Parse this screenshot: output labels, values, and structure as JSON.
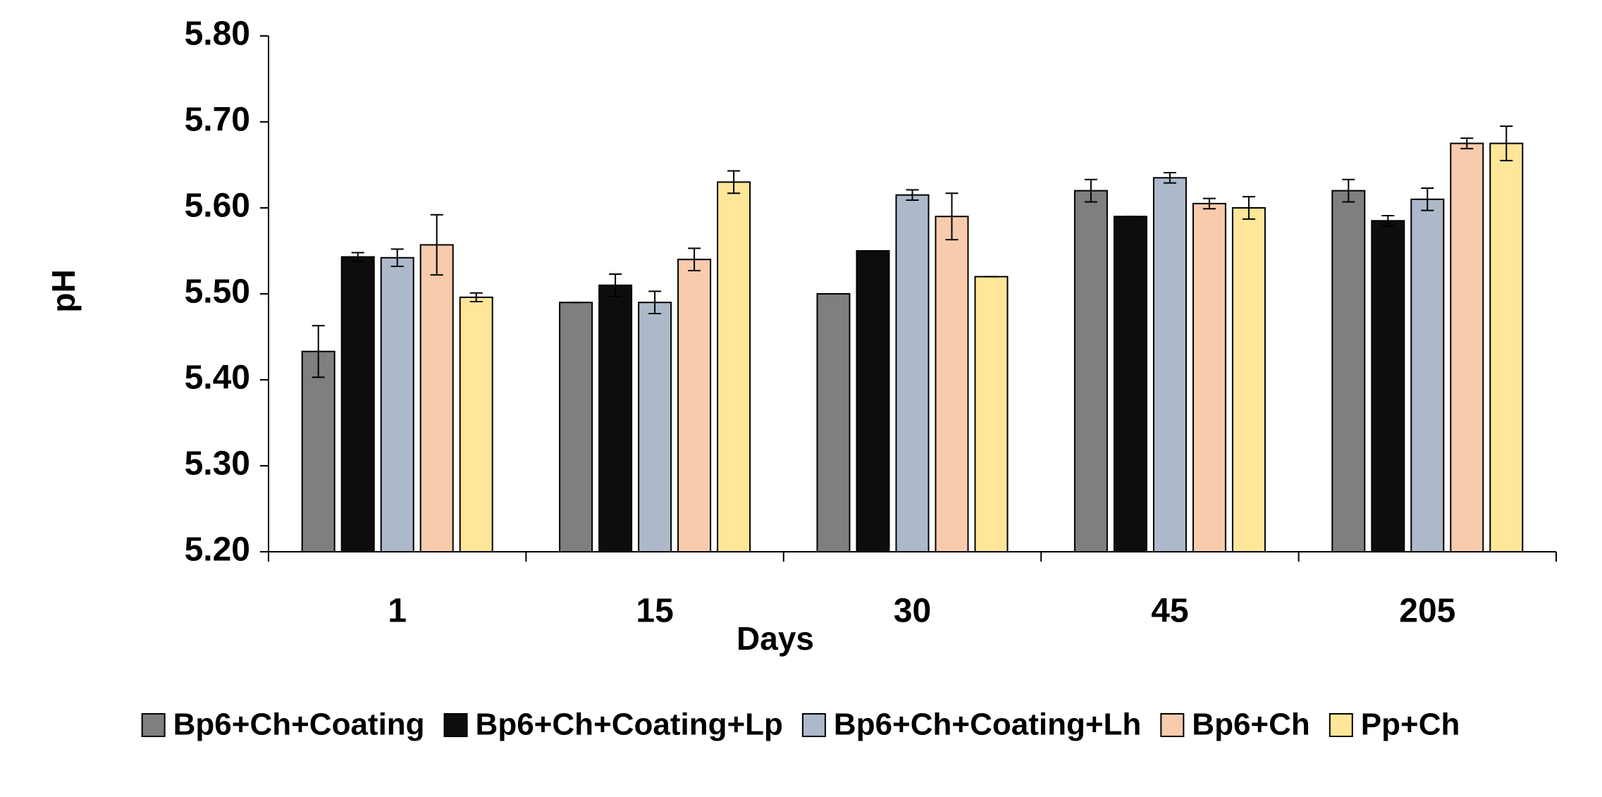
{
  "chart_data": {
    "type": "bar",
    "x_label": "Days",
    "y_label": "pH",
    "categories": [
      "1",
      "15",
      "30",
      "45",
      "205"
    ],
    "series": [
      {
        "name": "Bp6+Ch+Coating",
        "color": "#7f7f7f",
        "values": [
          5.433,
          5.49,
          5.5,
          5.62,
          5.62
        ],
        "errors": [
          0.03,
          0,
          0,
          0.013,
          0.013
        ]
      },
      {
        "name": "Bp6+Ch+Coating+Lp",
        "color": "#0d0d0d",
        "values": [
          5.543,
          5.51,
          5.55,
          5.59,
          5.585
        ],
        "errors": [
          0.005,
          0.013,
          0,
          0,
          0.006
        ]
      },
      {
        "name": "Bp6+Ch+Coating+Lh",
        "color": "#adb9ca",
        "values": [
          5.542,
          5.49,
          5.615,
          5.635,
          5.61
        ],
        "errors": [
          0.01,
          0.013,
          0.006,
          0.006,
          0.013
        ]
      },
      {
        "name": "Bp6+Ch",
        "color": "#f8cbad",
        "values": [
          5.557,
          5.54,
          5.59,
          5.605,
          5.675
        ],
        "errors": [
          0.035,
          0.013,
          0.027,
          0.006,
          0.006
        ]
      },
      {
        "name": "Pp+Ch",
        "color": "#ffe699",
        "values": [
          5.496,
          5.63,
          5.52,
          5.6,
          5.675
        ],
        "errors": [
          0.005,
          0.013,
          0,
          0.013,
          0.02
        ]
      }
    ],
    "ylim": [
      5.2,
      5.8
    ],
    "yticks": [
      {
        "value": 5.2,
        "label": "5.20"
      },
      {
        "value": 5.3,
        "label": "5.30"
      },
      {
        "value": 5.4,
        "label": "5.40"
      },
      {
        "value": 5.5,
        "label": "5.50"
      },
      {
        "value": 5.6,
        "label": "5.60"
      },
      {
        "value": 5.7,
        "label": "5.70"
      },
      {
        "value": 5.8,
        "label": "5.80"
      }
    ],
    "legend": "bottom"
  }
}
